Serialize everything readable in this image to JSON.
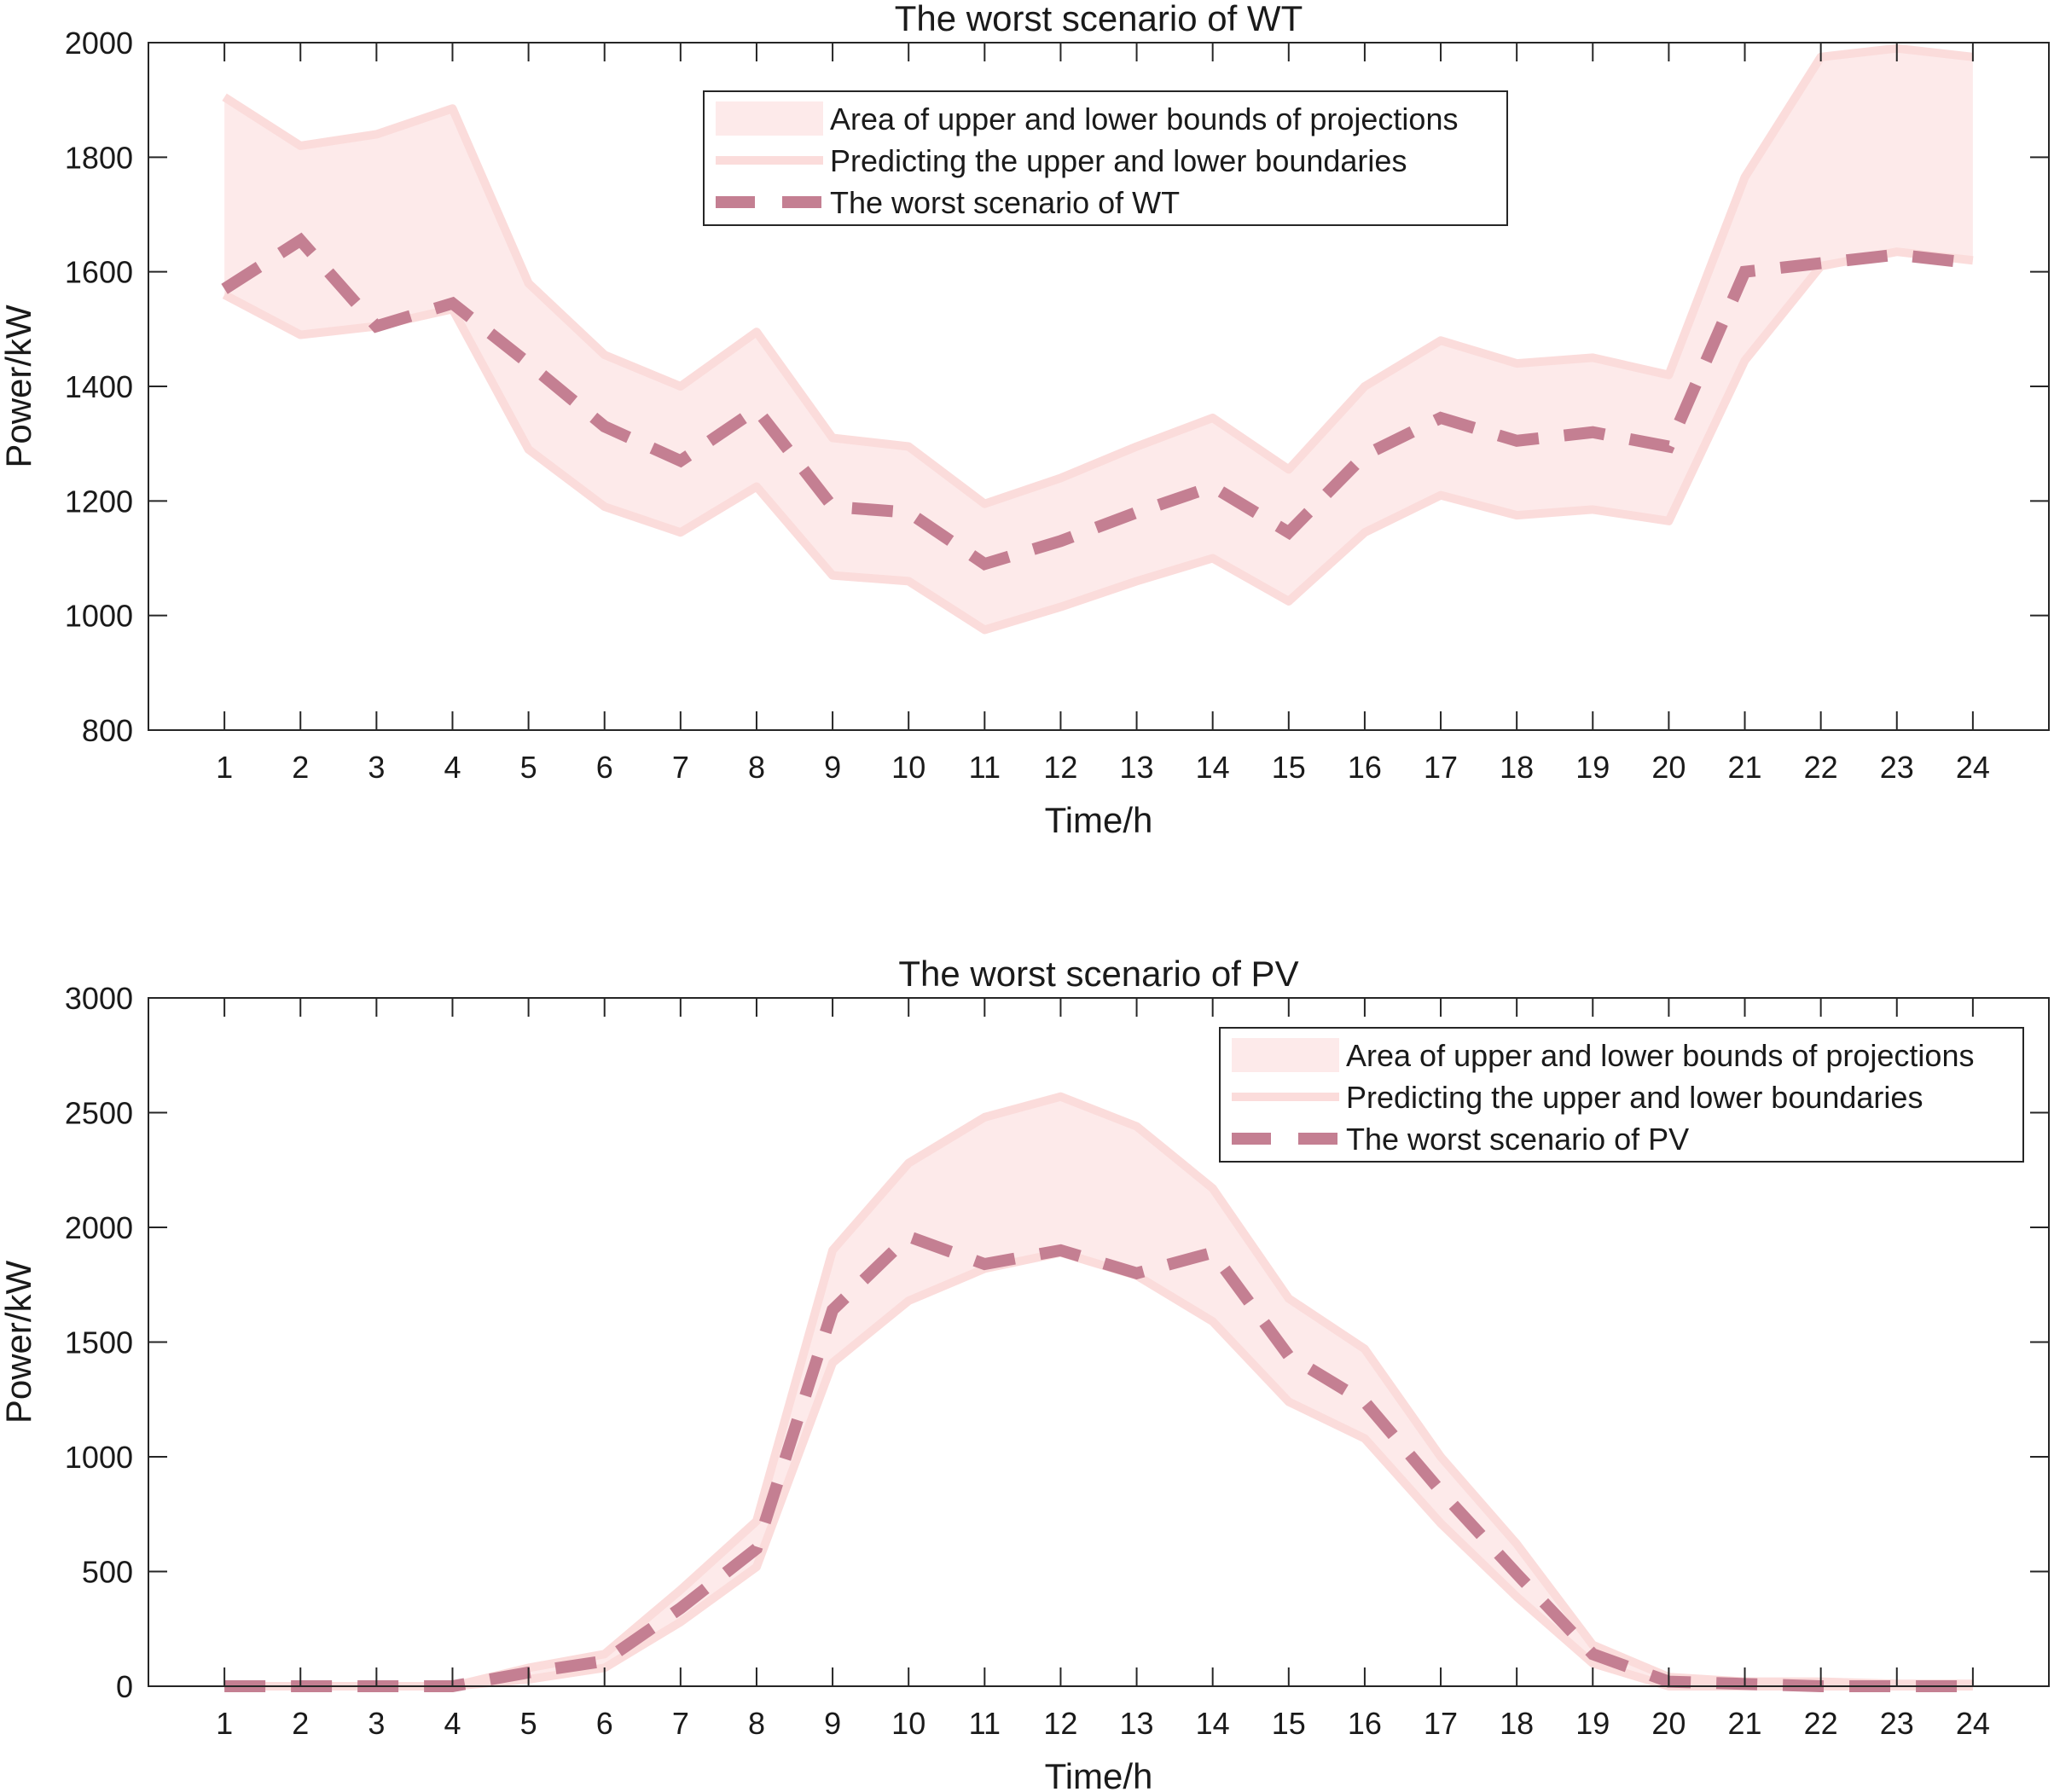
{
  "colors": {
    "band_fill": "#fdeaea",
    "bound_line": "#fbdcdb",
    "worst_line": "#c47f92",
    "axis": "#262626"
  },
  "chart_data": [
    {
      "type": "area",
      "title": "The worst scenario of WT",
      "xlabel": "Time/h",
      "ylabel": "Power/kW",
      "x": [
        1,
        2,
        3,
        4,
        5,
        6,
        7,
        8,
        9,
        10,
        11,
        12,
        13,
        14,
        15,
        16,
        17,
        18,
        19,
        20,
        21,
        22,
        23,
        24
      ],
      "xlim": [
        0,
        25
      ],
      "ylim": [
        800,
        2000
      ],
      "yticks": [
        800,
        1000,
        1200,
        1400,
        1600,
        1800,
        2000
      ],
      "grid": false,
      "legend_position": "top-center",
      "series": [
        {
          "name": "Area of upper and lower bounds of projections",
          "kind": "band"
        },
        {
          "name": "Predicting the upper and lower boundaries",
          "kind": "bounds",
          "upper": [
            1905,
            1820,
            1840,
            1885,
            1580,
            1455,
            1400,
            1495,
            1310,
            1295,
            1195,
            1240,
            1295,
            1345,
            1255,
            1400,
            1480,
            1440,
            1450,
            1420,
            1765,
            1975,
            1990,
            1975
          ],
          "lower": [
            1560,
            1490,
            1505,
            1535,
            1290,
            1190,
            1145,
            1225,
            1070,
            1060,
            975,
            1015,
            1060,
            1100,
            1025,
            1145,
            1210,
            1175,
            1185,
            1165,
            1445,
            1610,
            1635,
            1620
          ]
        },
        {
          "name": "The worst scenario of WT",
          "kind": "worst",
          "values": [
            1570,
            1655,
            1505,
            1545,
            1440,
            1330,
            1270,
            1360,
            1190,
            1180,
            1090,
            1130,
            1180,
            1225,
            1145,
            1280,
            1345,
            1305,
            1320,
            1295,
            1600,
            1615,
            1630,
            1615
          ]
        }
      ]
    },
    {
      "type": "area",
      "title": "The worst scenario of PV",
      "xlabel": "Time/h",
      "ylabel": "Power/kW",
      "x": [
        1,
        2,
        3,
        4,
        5,
        6,
        7,
        8,
        9,
        10,
        11,
        12,
        13,
        14,
        15,
        16,
        17,
        18,
        19,
        20,
        21,
        22,
        23,
        24
      ],
      "xlim": [
        0,
        25
      ],
      "ylim": [
        0,
        3000
      ],
      "yticks": [
        0,
        500,
        1000,
        1500,
        2000,
        2500,
        3000
      ],
      "grid": false,
      "legend_position": "top-right",
      "series": [
        {
          "name": "Area of upper and lower bounds of projections",
          "kind": "band"
        },
        {
          "name": "Predicting the upper and lower boundaries",
          "kind": "bounds",
          "upper": [
            0,
            0,
            0,
            0,
            80,
            140,
            420,
            720,
            1900,
            2280,
            2480,
            2570,
            2440,
            2170,
            1690,
            1470,
            1000,
            620,
            180,
            40,
            20,
            20,
            10,
            10
          ],
          "lower": [
            0,
            0,
            0,
            0,
            30,
            80,
            280,
            520,
            1410,
            1680,
            1820,
            1890,
            1790,
            1590,
            1240,
            1080,
            710,
            390,
            100,
            0,
            0,
            0,
            0,
            0
          ]
        },
        {
          "name": "The worst scenario of PV",
          "kind": "worst",
          "values": [
            0,
            0,
            0,
            0,
            60,
            110,
            340,
            600,
            1640,
            1960,
            1840,
            1900,
            1800,
            1890,
            1440,
            1240,
            850,
            490,
            140,
            20,
            10,
            0,
            0,
            0
          ]
        }
      ]
    }
  ]
}
